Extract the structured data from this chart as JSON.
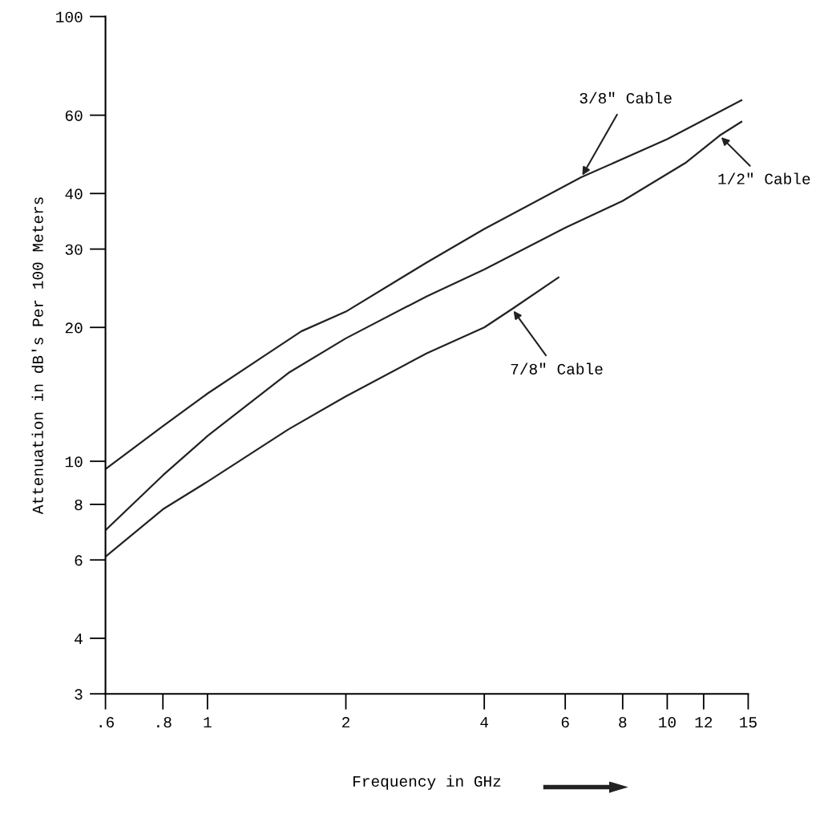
{
  "chart_data": {
    "type": "line",
    "xlabel": "Frequency in GHz",
    "ylabel": "Attenuation in dB's Per 100 Meters",
    "log": "xy",
    "grid": false,
    "legend": false,
    "marker": "none",
    "line_style": "solid",
    "xlim": [
      0.6,
      15
    ],
    "xticks": [
      {
        "value": 0.6,
        "label": ".6"
      },
      {
        "value": 0.8,
        "label": ".8"
      },
      1,
      2,
      4,
      6,
      8,
      10,
      12,
      15
    ],
    "ylim": [
      3,
      100
    ],
    "yticks": [
      3,
      4,
      6,
      8,
      10,
      20,
      30,
      40,
      60,
      100
    ],
    "series": [
      {
        "color": "#222222",
        "x": [
          0.6,
          0.8,
          1,
          1.3,
          1.6,
          2,
          3,
          4,
          6.5,
          10,
          14.5
        ],
        "values": [
          9.6,
          12.0,
          14.2,
          17.0,
          19.6,
          21.7,
          28.0,
          33.3,
          43.5,
          53.0,
          64.8
        ]
      },
      {
        "color": "#222222",
        "x": [
          0.6,
          0.8,
          1,
          1.5,
          2,
          3,
          4,
          6,
          8,
          11,
          13,
          14.5
        ],
        "values": [
          7.0,
          9.3,
          11.4,
          15.8,
          18.9,
          23.5,
          27.0,
          33.5,
          38.5,
          47.0,
          54.0,
          58.0
        ]
      },
      {
        "color": "#222222",
        "x": [
          0.6,
          0.8,
          1,
          1.5,
          2,
          3,
          4,
          4.6,
          5.8
        ],
        "values": [
          6.1,
          7.8,
          9.0,
          11.8,
          14.0,
          17.5,
          20.0,
          22.0,
          25.9
        ]
      }
    ],
    "annotations": [
      {
        "text": "3/8\" Cable",
        "x": 6.5,
        "y": 43.5
      },
      {
        "text": "1/2\" Cable",
        "x": 13,
        "y": 54
      },
      {
        "text": "7/8\" Cable",
        "x": 4.6,
        "y": 22
      }
    ]
  }
}
